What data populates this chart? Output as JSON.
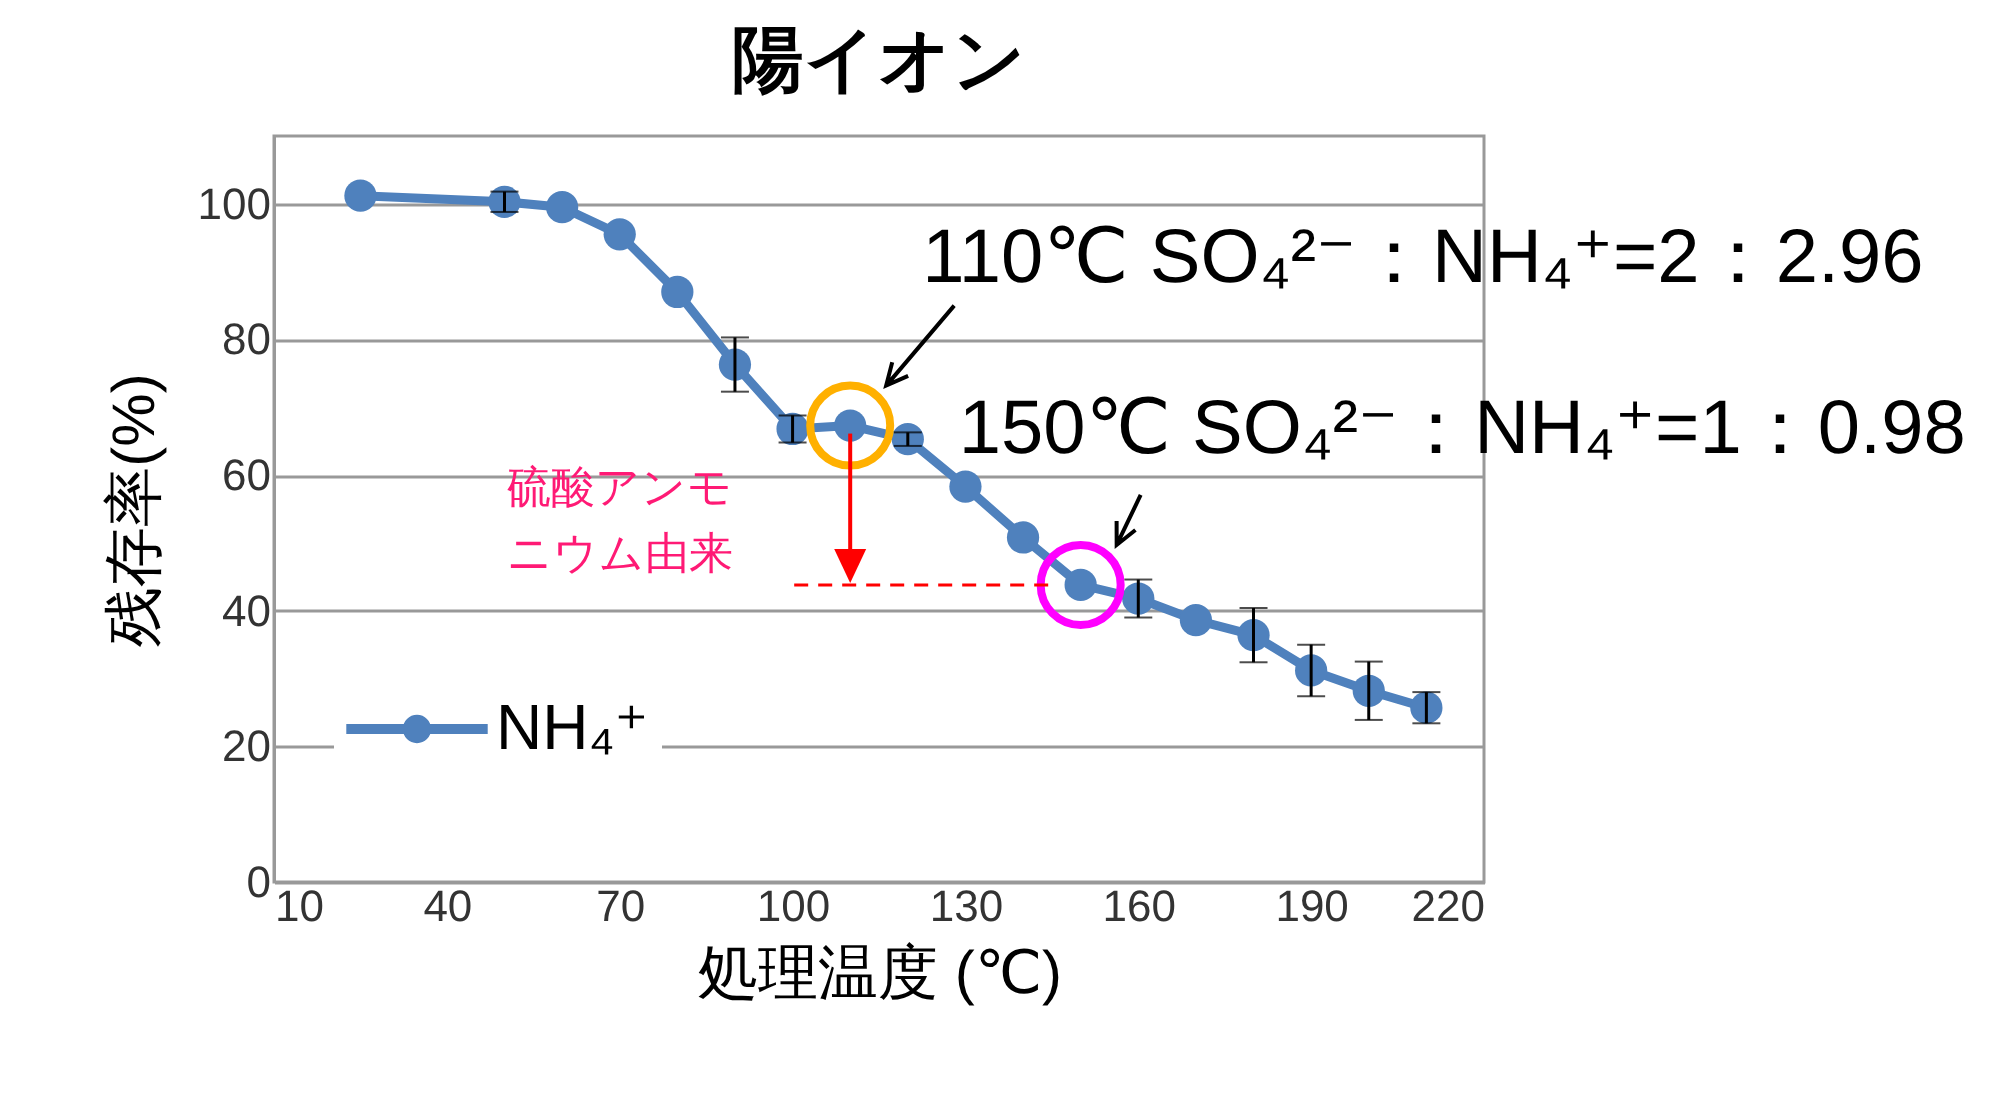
{
  "chart_data": {
    "type": "line",
    "title": "陽イオン",
    "xlabel": "処理温度 (℃)",
    "ylabel": "残存率(%)",
    "x": [
      25,
      50,
      60,
      70,
      80,
      90,
      100,
      110,
      120,
      130,
      140,
      150,
      160,
      170,
      180,
      190,
      200,
      210
    ],
    "series": [
      {
        "name": "NH₄⁺",
        "color": "#4f81bd",
        "values": [
          101.2,
          100.3,
          99.5,
          95.5,
          87,
          76.3,
          66.8,
          67.3,
          65.3,
          58.3,
          50.8,
          43.8,
          41.8,
          38.6,
          36.4,
          31.2,
          28.2,
          25.7
        ],
        "errors": [
          null,
          1.5,
          null,
          null,
          null,
          4,
          2,
          null,
          1,
          null,
          null,
          null,
          2.8,
          null,
          4,
          3.8,
          4.3,
          2.3
        ]
      }
    ],
    "xlim": [
      10,
      220
    ],
    "xticks": [
      10,
      40,
      70,
      100,
      130,
      160,
      190,
      220
    ],
    "ylim": [
      0,
      110
    ],
    "yticks": [
      0,
      20,
      40,
      60,
      80,
      100
    ],
    "grid": "y",
    "legend": "left",
    "marker": "circle",
    "annotations": [
      {
        "text": "110℃  SO₄²⁻：NH₄⁺=2：2.96",
        "x": 110,
        "y": 67.3
      },
      {
        "text": "150℃  SO₄²⁻：NH₄⁺=1：0.98",
        "x": 150,
        "y": 43.8
      },
      "硫酸アンモニウム由来"
    ]
  }
}
